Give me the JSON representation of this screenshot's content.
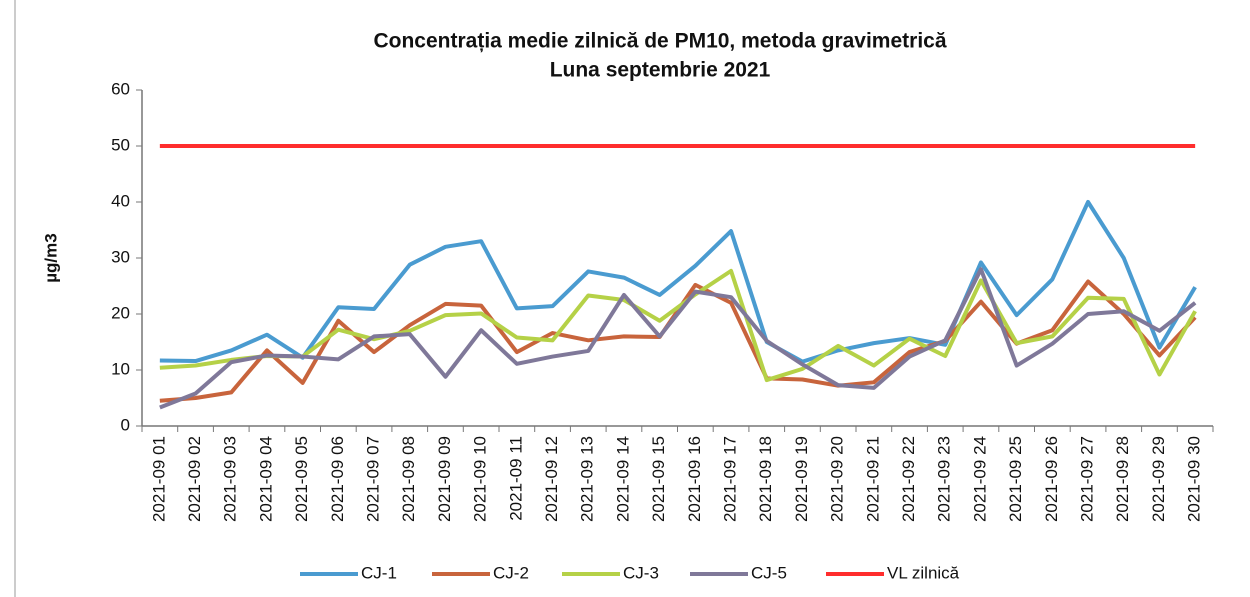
{
  "chart_data": {
    "type": "line",
    "title": "Concentrația medie zilnică de PM10,  metoda gravimetrică",
    "subtitle": "Luna septembrie 2021",
    "y_label": "µg/m3",
    "categories": [
      "2021-09 01",
      "2021-09 02",
      "2021-09 03",
      "2021-09 04",
      "2021-09 05",
      "2021-09 06",
      "2021-09 07",
      "2021-09 08",
      "2021-09 09",
      "2021-09 10",
      "2021-09 11",
      "2021-09 12",
      "2021-09 13",
      "2021-09 14",
      "2021-09 15",
      "2021-09 16",
      "2021-09 17",
      "2021-09 18",
      "2021-09 19",
      "2021-09 20",
      "2021-09 21",
      "2021-09 22",
      "2021-09 23",
      "2021-09 24",
      "2021-09 25",
      "2021-09 26",
      "2021-09 27",
      "2021-09 28",
      "2021-09 29",
      "2021-09 30"
    ],
    "series": [
      {
        "name": "CJ-1",
        "color": "#4a9bd0",
        "values": [
          11.7,
          11.6,
          13.5,
          16.3,
          12.2,
          21.2,
          20.9,
          28.8,
          32,
          33,
          21,
          21.4,
          27.6,
          26.5,
          23.4,
          28.6,
          34.8,
          15,
          11.5,
          13.5,
          14.8,
          15.7,
          14.5,
          29.2,
          19.8,
          26.2,
          40,
          30,
          14,
          24.8
        ]
      },
      {
        "name": "CJ-2",
        "color": "#c8643c",
        "values": [
          4.5,
          5,
          6,
          13.5,
          7.7,
          18.8,
          13.2,
          18,
          21.8,
          21.5,
          13.2,
          16.6,
          15.3,
          16,
          15.9,
          25.2,
          22,
          8.5,
          8.3,
          7.2,
          7.8,
          13.2,
          15.2,
          22.2,
          14.7,
          17.1,
          25.8,
          20,
          12.6,
          19.4
        ]
      },
      {
        "name": "CJ-3",
        "color": "#b5d147",
        "values": [
          10.4,
          10.8,
          11.8,
          12.5,
          12.4,
          17.2,
          15.5,
          17,
          19.8,
          20.1,
          15.8,
          15.3,
          23.3,
          22.5,
          18.8,
          23.5,
          27.7,
          8.2,
          10.2,
          14.3,
          10.8,
          15.6,
          12.5,
          26,
          14.8,
          16,
          22.9,
          22.7,
          9.2,
          20.5
        ]
      },
      {
        "name": "CJ-5",
        "color": "#7f7899",
        "values": [
          3.3,
          5.8,
          11.4,
          12.6,
          12.4,
          11.9,
          16,
          16.4,
          8.8,
          17.1,
          11.1,
          12.4,
          13.4,
          23.4,
          16,
          24,
          23,
          15.2,
          11,
          7.3,
          6.8,
          12.4,
          15.3,
          28,
          10.8,
          14.7,
          20,
          20.5,
          17,
          22
        ]
      },
      {
        "name": "VL zilnică",
        "color": "#ff2d2d",
        "values": [
          50,
          50,
          50,
          50,
          50,
          50,
          50,
          50,
          50,
          50,
          50,
          50,
          50,
          50,
          50,
          50,
          50,
          50,
          50,
          50,
          50,
          50,
          50,
          50,
          50,
          50,
          50,
          50,
          50,
          50
        ]
      }
    ],
    "ylim": [
      0,
      60
    ],
    "yticks": [
      0,
      10,
      20,
      30,
      40,
      50,
      60
    ],
    "grid": false,
    "legend": "bottom"
  }
}
